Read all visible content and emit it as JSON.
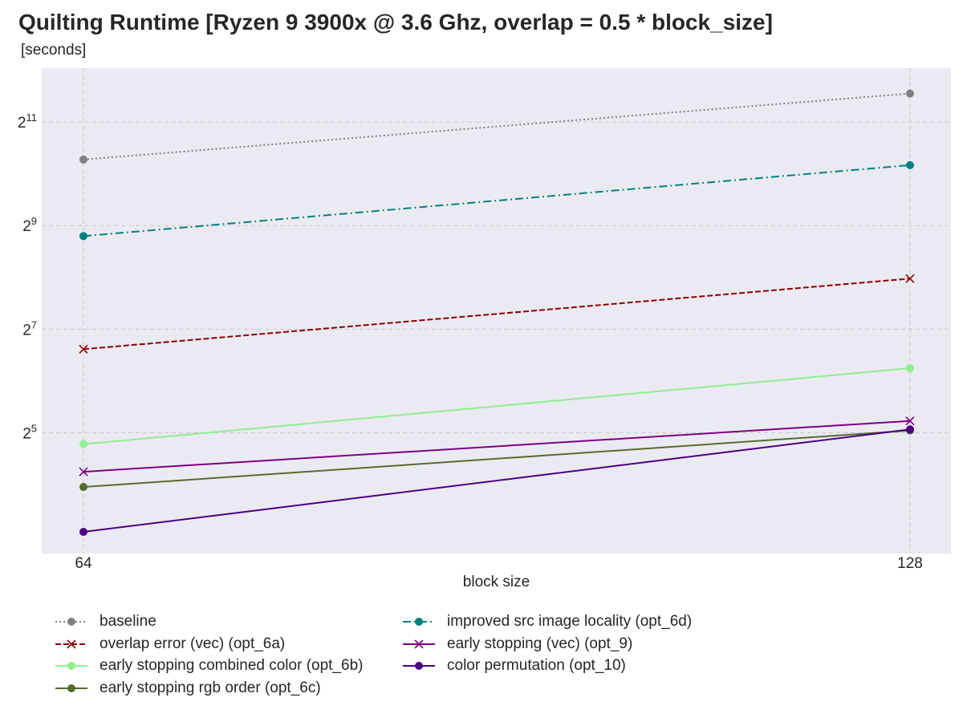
{
  "header": {
    "title": "Quilting Runtime [Ryzen 9 3900x @ 3.6 Ghz, overlap = 0.5 * block_size]",
    "subtitle": "[seconds]"
  },
  "chart_data": {
    "type": "line",
    "title": "Quilting Runtime [Ryzen 9 3900x @ 3.6 Ghz, overlap = 0.5 * block_size]",
    "subtitle": "[seconds]",
    "xlabel": "block size",
    "ylabel": "",
    "x": [
      64,
      128
    ],
    "x_tick_labels": [
      "64",
      "128"
    ],
    "y_scale": "log2",
    "y_ticks": [
      {
        "value": 32,
        "base": "2",
        "exp": "5"
      },
      {
        "value": 128,
        "base": "2",
        "exp": "7"
      },
      {
        "value": 512,
        "base": "2",
        "exp": "9"
      },
      {
        "value": 2048,
        "base": "2",
        "exp": "11"
      }
    ],
    "ylim": [
      8.5,
      3150
    ],
    "grid": true,
    "legend_placement": "bottom",
    "background": "#eaeaf2",
    "series": [
      {
        "name": "baseline",
        "values": [
          1240,
          3000
        ],
        "color": "#808080",
        "dash": "dotted",
        "marker": "o"
      },
      {
        "name": "overlap error (vec) (opt_6a)",
        "values": [
          98,
          252
        ],
        "color": "#8b0000",
        "dash": "dashed",
        "marker": "x"
      },
      {
        "name": "early stopping combined color (opt_6b)",
        "values": [
          27.5,
          76
        ],
        "color": "#90ee90",
        "dash": "solid",
        "marker": "o"
      },
      {
        "name": "early stopping rgb order (opt_6c)",
        "values": [
          15.5,
          33
        ],
        "color": "#556b2f",
        "dash": "solid",
        "marker": "o"
      },
      {
        "name": "improved src image locality (opt_6d)",
        "values": [
          445,
          1150
        ],
        "color": "#008080",
        "dash": "dashdot",
        "marker": "o"
      },
      {
        "name": "early stopping (vec) (opt_9)",
        "values": [
          19,
          37.5
        ],
        "color": "#800080",
        "dash": "solid",
        "marker": "x"
      },
      {
        "name": "color permutation (opt_10)",
        "values": [
          8.5,
          33.5
        ],
        "color": "#4b0082",
        "dash": "solid",
        "marker": "o"
      }
    ]
  }
}
